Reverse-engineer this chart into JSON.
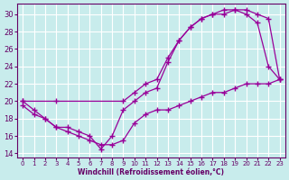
{
  "xlabel": "Windchill (Refroidissement éolien,°C)",
  "background_color": "#c8ecec",
  "line_color": "#990099",
  "grid_color": "#ffffff",
  "xticks": [
    0,
    1,
    2,
    3,
    4,
    5,
    6,
    7,
    8,
    9,
    10,
    11,
    12,
    13,
    14,
    15,
    16,
    17,
    18,
    19,
    20,
    21,
    22,
    23
  ],
  "yticks": [
    14,
    16,
    18,
    20,
    22,
    24,
    26,
    28,
    30
  ],
  "line1_x": [
    0,
    3,
    9,
    10,
    11,
    12,
    13,
    14,
    15,
    16,
    17,
    18,
    19,
    20,
    21,
    22,
    23
  ],
  "line1_y": [
    20,
    20,
    20,
    21,
    22,
    22.5,
    25,
    27,
    28.5,
    29.5,
    30,
    30,
    30.5,
    30.5,
    30,
    29.5,
    22.5
  ],
  "line2_x": [
    0,
    1,
    2,
    3,
    4,
    5,
    6,
    7,
    8,
    9,
    10,
    11,
    12,
    13,
    14,
    15,
    16,
    17,
    18,
    19,
    20,
    21,
    22,
    23
  ],
  "line2_y": [
    20,
    19,
    18,
    17,
    17,
    16.5,
    16,
    14.5,
    16,
    19,
    20,
    21,
    21.5,
    24.5,
    27,
    28.5,
    29.5,
    30,
    30.5,
    30.5,
    30,
    29,
    24,
    22.5
  ],
  "line3_x": [
    0,
    1,
    2,
    3,
    4,
    5,
    6,
    7,
    8,
    9,
    10,
    11,
    12,
    13,
    14,
    15,
    16,
    17,
    18,
    19,
    20,
    21,
    22,
    23
  ],
  "line3_y": [
    19.5,
    18.5,
    18,
    17,
    16.5,
    16,
    15.5,
    15,
    15,
    15.5,
    17.5,
    18.5,
    19,
    19,
    19.5,
    20,
    20.5,
    21,
    21,
    21.5,
    22,
    22,
    22,
    22.5
  ]
}
